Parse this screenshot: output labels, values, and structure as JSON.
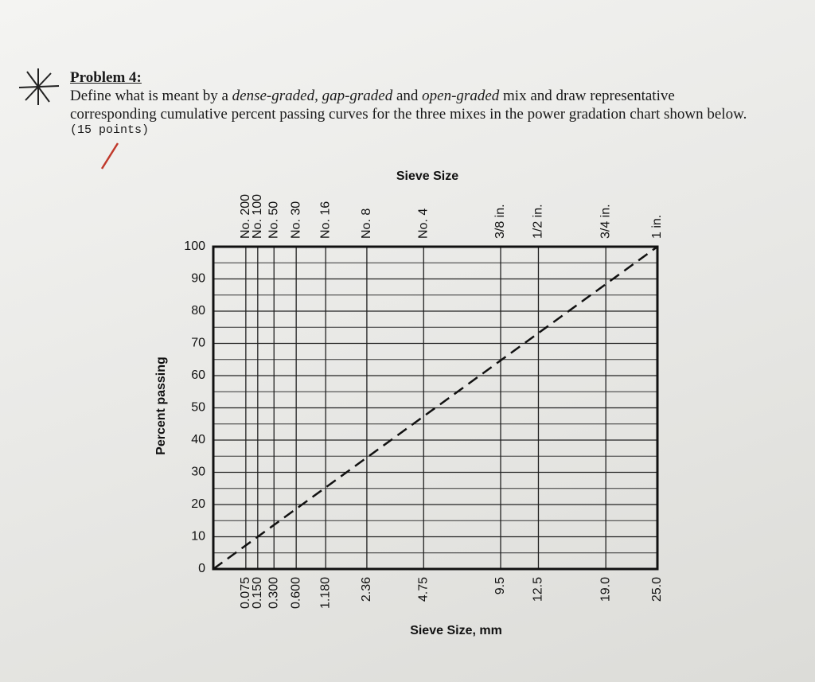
{
  "problem": {
    "title": "Problem 4:",
    "body": [
      "Define what is meant by a ",
      "dense-graded, gap-graded",
      " and ",
      "open-graded",
      " mix and draw representative corresponding cumulative percent passing curves for the three mixes in the power gradation chart shown below."
    ],
    "points": "(15 points)"
  },
  "chart_data": {
    "type": "line",
    "top_axis_title": "Sieve Size",
    "x_label": "Sieve Size, mm",
    "y_label": "Percent passing",
    "xscale": "power",
    "xpower": 0.45,
    "xlim": [
      0,
      25
    ],
    "ylim": [
      0,
      100
    ],
    "xticks": [
      0.075,
      {
        "value": 0.15,
        "label": "0.150"
      },
      {
        "value": 0.3,
        "label": "0.300"
      },
      {
        "value": 0.6,
        "label": "0.600"
      },
      {
        "value": 1.18,
        "label": "1.180"
      },
      2.36,
      4.75,
      9.5,
      12.5,
      {
        "value": 19,
        "label": "19.0"
      },
      {
        "value": 25,
        "label": "25.0"
      }
    ],
    "x2ticks": [
      {
        "value": 0.075,
        "label": "No. 200"
      },
      {
        "value": 0.15,
        "label": "No. 100"
      },
      {
        "value": 0.3,
        "label": "No. 50"
      },
      {
        "value": 0.6,
        "label": "No. 30"
      },
      {
        "value": 1.18,
        "label": "No. 16"
      },
      {
        "value": 2.36,
        "label": "No. 8"
      },
      {
        "value": 4.75,
        "label": "No. 4"
      },
      {
        "value": 9.5,
        "label": "3/8 in."
      },
      {
        "value": 12.5,
        "label": "1/2 in."
      },
      {
        "value": 19,
        "label": "3/4 in."
      },
      {
        "value": 25,
        "label": "1 in."
      }
    ],
    "yticks": [
      0,
      10,
      20,
      30,
      40,
      50,
      60,
      70,
      80,
      90,
      100
    ],
    "minor_yticks": [
      5,
      15,
      25,
      35,
      45,
      55,
      65,
      75,
      85,
      95
    ],
    "grid": true,
    "series": [
      {
        "color": "#111111",
        "dashed": true,
        "x": [
          0,
          25
        ],
        "values": [
          0,
          100
        ]
      }
    ]
  }
}
